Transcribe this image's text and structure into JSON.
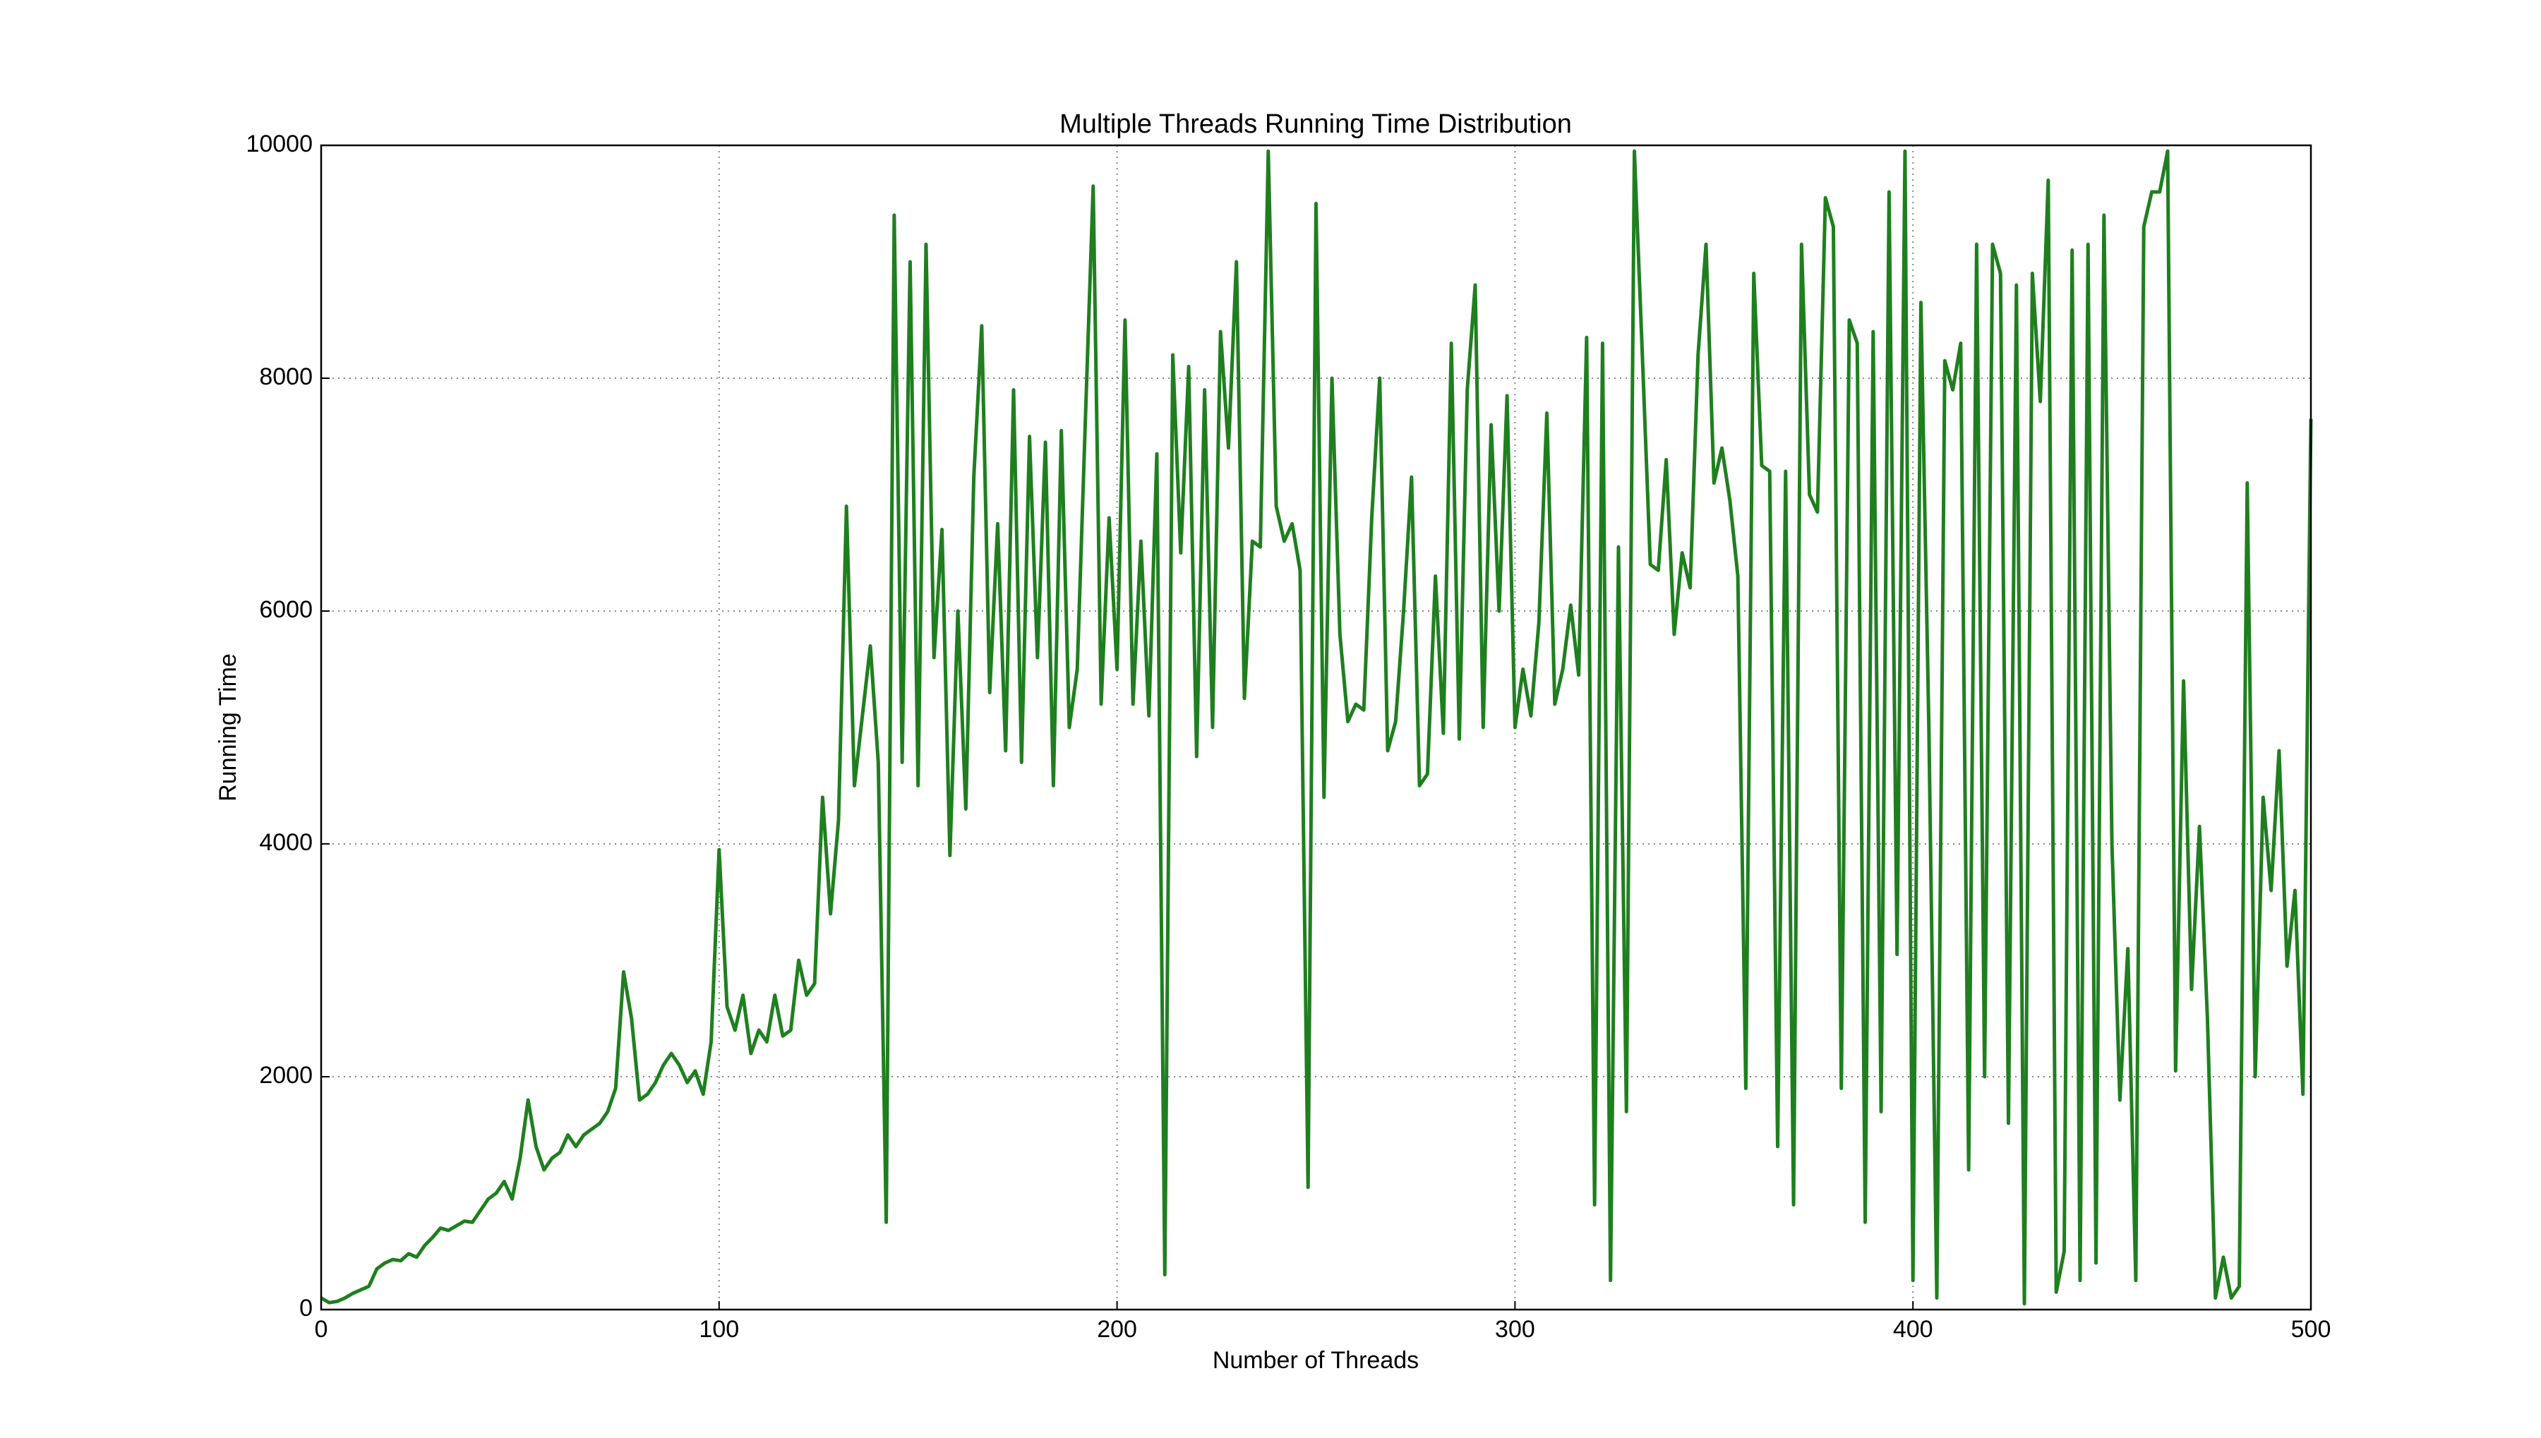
{
  "chart_data": {
    "type": "line",
    "title": "Multiple Threads Running Time Distribution",
    "x_label": "Number of Threads",
    "y_label": "Running Time",
    "xlim": [
      0,
      500
    ],
    "ylim": [
      0,
      10000
    ],
    "xticks": [
      0,
      100,
      200,
      300,
      400,
      500
    ],
    "yticks": [
      0,
      2000,
      4000,
      6000,
      8000,
      10000
    ],
    "grid": true,
    "x": [
      0,
      2,
      4,
      6,
      8,
      10,
      12,
      14,
      16,
      18,
      20,
      22,
      24,
      26,
      28,
      30,
      32,
      34,
      36,
      38,
      40,
      42,
      44,
      46,
      48,
      50,
      52,
      54,
      56,
      58,
      60,
      62,
      64,
      66,
      68,
      70,
      72,
      74,
      76,
      78,
      80,
      82,
      84,
      86,
      88,
      90,
      92,
      94,
      96,
      98,
      100,
      102,
      104,
      106,
      108,
      110,
      112,
      114,
      116,
      118,
      120,
      122,
      124,
      126,
      128,
      130,
      132,
      134,
      136,
      138,
      140,
      142,
      144,
      146,
      148,
      150,
      152,
      154,
      156,
      158,
      160,
      162,
      164,
      166,
      168,
      170,
      172,
      174,
      176,
      178,
      180,
      182,
      184,
      186,
      188,
      190,
      192,
      194,
      196,
      198,
      200,
      202,
      204,
      206,
      208,
      210,
      212,
      214,
      216,
      218,
      220,
      222,
      224,
      226,
      228,
      230,
      232,
      234,
      236,
      238,
      240,
      242,
      244,
      246,
      248,
      250,
      252,
      254,
      256,
      258,
      260,
      262,
      264,
      266,
      268,
      270,
      272,
      274,
      276,
      278,
      280,
      282,
      284,
      286,
      288,
      290,
      292,
      294,
      296,
      298,
      300,
      302,
      304,
      306,
      308,
      310,
      312,
      314,
      316,
      318,
      320,
      322,
      324,
      326,
      328,
      330,
      332,
      334,
      336,
      338,
      340,
      342,
      344,
      346,
      348,
      350,
      352,
      354,
      356,
      358,
      360,
      362,
      364,
      366,
      368,
      370,
      372,
      374,
      376,
      378,
      380,
      382,
      384,
      386,
      388,
      390,
      392,
      394,
      396,
      398,
      400,
      402,
      404,
      406,
      408,
      410,
      412,
      414,
      416,
      418,
      420,
      422,
      424,
      426,
      428,
      430,
      432,
      434,
      436,
      438,
      440,
      442,
      444,
      446,
      448,
      450,
      452,
      454,
      456,
      458,
      460,
      462,
      464,
      466,
      468,
      470,
      472,
      474,
      476,
      478,
      480,
      482,
      484,
      486,
      488,
      490,
      492,
      494,
      496,
      498,
      500
    ],
    "series": [
      {
        "name": "Running Time",
        "color": "#1f7f1f",
        "values": [
          100,
          60,
          70,
          100,
          140,
          170,
          200,
          350,
          400,
          430,
          420,
          480,
          450,
          550,
          620,
          700,
          680,
          720,
          760,
          750,
          850,
          950,
          1000,
          1100,
          950,
          1300,
          1800,
          1400,
          1200,
          1300,
          1350,
          1500,
          1400,
          1500,
          1550,
          1600,
          1700,
          1900,
          2900,
          2500,
          1800,
          1850,
          1950,
          2100,
          2200,
          2100,
          1950,
          2050,
          1850,
          2300,
          3950,
          2600,
          2400,
          2700,
          2200,
          2400,
          2300,
          2700,
          2350,
          2400,
          3000,
          2700,
          2800,
          4400,
          3400,
          4200,
          6900,
          4500,
          5100,
          5700,
          4700,
          750,
          9400,
          4700,
          9000,
          4500,
          9150,
          5600,
          6700,
          3900,
          6000,
          4300,
          7150,
          8450,
          5300,
          6750,
          4800,
          7900,
          4700,
          7500,
          5600,
          7450,
          4500,
          7550,
          5000,
          5500,
          7600,
          9650,
          5200,
          6800,
          5500,
          8500,
          5200,
          6600,
          5100,
          7350,
          300,
          8200,
          6500,
          8100,
          4750,
          7900,
          5000,
          8400,
          7400,
          9000,
          5250,
          6600,
          6550,
          9950,
          6900,
          6600,
          6750,
          6350,
          1050,
          9500,
          4400,
          8000,
          5800,
          5050,
          5200,
          5150,
          6800,
          8000,
          4800,
          5050,
          6000,
          7150,
          4500,
          4600,
          6300,
          4950,
          8300,
          4900,
          7900,
          8800,
          5000,
          7600,
          6000,
          7850,
          5000,
          5500,
          5100,
          5900,
          7700,
          5200,
          5500,
          6050,
          5450,
          8350,
          900,
          8300,
          250,
          6550,
          1700,
          9950,
          8200,
          6400,
          6350,
          7300,
          5800,
          6500,
          6200,
          8200,
          9150,
          7100,
          7400,
          6950,
          6300,
          1900,
          8900,
          7250,
          7200,
          1400,
          7200,
          900,
          9150,
          7000,
          6850,
          9550,
          9300,
          1900,
          8500,
          8300,
          750,
          8400,
          1700,
          9600,
          3050,
          9950,
          250,
          8650,
          5000,
          100,
          8150,
          7900,
          8300,
          1200,
          9150,
          2000,
          9150,
          8900,
          1600,
          8800,
          50,
          8900,
          7800,
          9700,
          150,
          500,
          9100,
          250,
          9150,
          400,
          9400,
          4000,
          1800,
          3100,
          250,
          9300,
          9600,
          9600,
          9950,
          2050,
          5400,
          2750,
          4150,
          2500,
          100,
          450,
          100,
          200,
          7100,
          2000,
          4400,
          3600,
          4800,
          2950,
          3600,
          1850,
          7650
        ]
      }
    ]
  }
}
